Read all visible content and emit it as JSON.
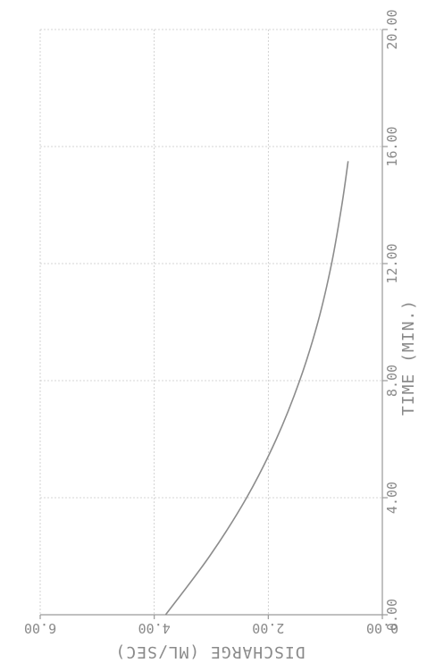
{
  "chart_data": {
    "type": "line",
    "xlabel": "TIME (MIN.)",
    "ylabel": "DISCHARGE (ML/SEC)",
    "xlim": [
      0,
      20
    ],
    "ylim": [
      0,
      6
    ],
    "x_ticks": [
      "0.00",
      "4.00",
      "8.00",
      "12.00",
      "16.00",
      "20.00"
    ],
    "y_ticks": [
      "0.00",
      "2.00",
      "4.00",
      "6.00"
    ],
    "grid": true,
    "series": [
      {
        "x": [
          0,
          2,
          4,
          6,
          8,
          10,
          12,
          14,
          15.5
        ],
        "y": [
          3.8,
          3.03,
          2.38,
          1.86,
          1.45,
          1.13,
          0.89,
          0.71,
          0.6
        ]
      }
    ]
  }
}
